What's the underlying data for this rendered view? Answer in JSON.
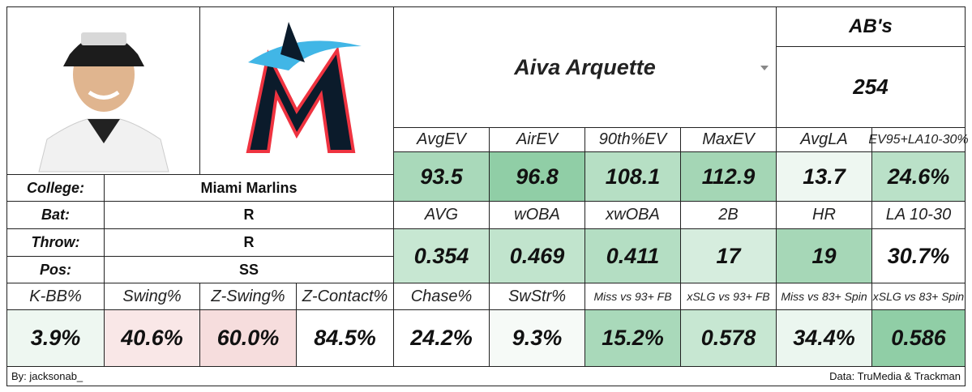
{
  "player": {
    "name": "Aiva Arquette"
  },
  "at_bats": {
    "label": "AB's",
    "value": 254
  },
  "bio": [
    {
      "label": "College:",
      "value": "Miami Marlins"
    },
    {
      "label": "Bat:",
      "value": "R"
    },
    {
      "label": "Throw:",
      "value": "R"
    },
    {
      "label": "Pos:",
      "value": "SS"
    }
  ],
  "stat_rows": [
    [
      {
        "label": "AvgEV",
        "value": 93.5,
        "color": "#a9d9ba"
      },
      {
        "label": "AirEV",
        "value": 96.8,
        "color": "#90cea6"
      },
      {
        "label": "90th%EV",
        "value": 108.1,
        "color": "#b6dfc4"
      },
      {
        "label": "MaxEV",
        "value": 112.9,
        "color": "#a4d6b5"
      },
      {
        "label": "AvgLA",
        "value": 13.7,
        "color": "#eef7f1"
      },
      {
        "label": "EV95+LA10-30%",
        "value": "24.6%",
        "color": "#bae1c8"
      }
    ],
    [
      {
        "label": "AVG",
        "value": 0.354,
        "color": "#c7e7d2"
      },
      {
        "label": "wOBA",
        "value": 0.469,
        "color": "#c1e4cd"
      },
      {
        "label": "xwOBA",
        "value": 0.411,
        "color": "#b4dec3"
      },
      {
        "label": "2B",
        "value": 17,
        "color": "#d6edde"
      },
      {
        "label": "HR",
        "value": 19,
        "color": "#a6d7b7"
      },
      {
        "label": "LA 10-30",
        "value": "30.7%",
        "color": "#ffffff"
      }
    ],
    [
      {
        "label": "K-BB%",
        "value": "3.9%",
        "color": "#eef7f1"
      },
      {
        "label": "Swing%",
        "value": "40.6%",
        "color": "#f9e7e7"
      },
      {
        "label": "Z-Swing%",
        "value": "60.0%",
        "color": "#f6dddd"
      },
      {
        "label": "Z-Contact%",
        "value": "84.5%",
        "color": "#ffffff"
      },
      {
        "label": "Chase%",
        "value": "24.2%",
        "color": "#ffffff"
      },
      {
        "label": "SwStr%",
        "value": "9.3%",
        "color": "#f6faf7"
      },
      {
        "label": "Miss vs 93+ FB",
        "value": "15.2%",
        "color": "#a9d9ba"
      },
      {
        "label": "xSLG vs 93+ FB",
        "value": 0.578,
        "color": "#c7e7d2"
      },
      {
        "label": "Miss vs 83+ Spin",
        "value": "34.4%",
        "color": "#ebf6ef"
      },
      {
        "label": "xSLG vs 83+ Spin",
        "value": 0.586,
        "color": "#90cea6"
      }
    ]
  ],
  "footer": {
    "credit": "By: jacksonab_",
    "source": "Data: TruMedia & Trackman"
  }
}
